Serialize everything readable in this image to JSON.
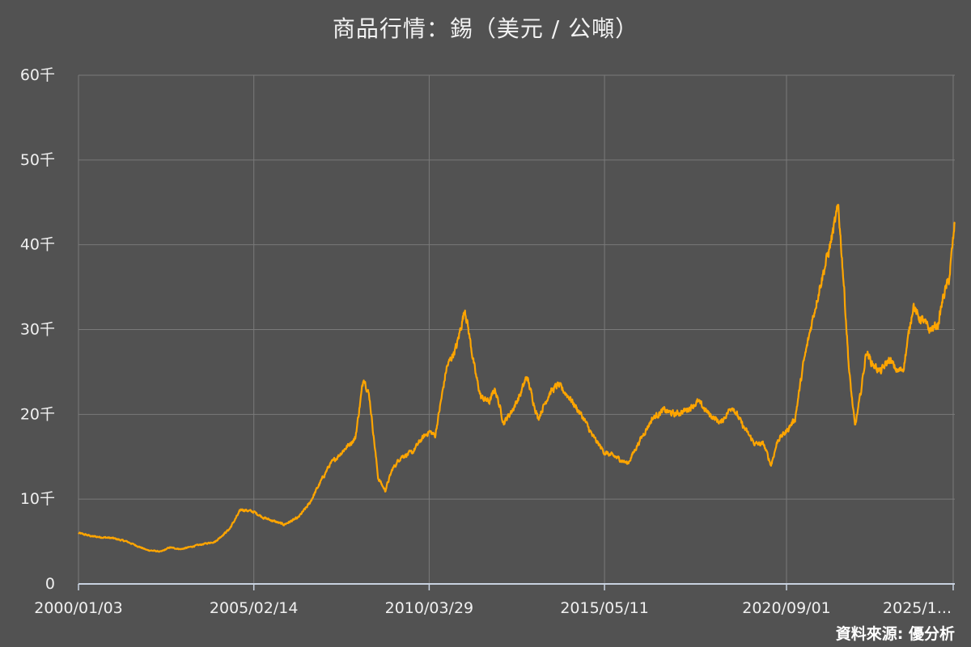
{
  "chart_data": {
    "type": "line",
    "title": "商品行情：錫（美元 / 公噸）",
    "source": "資料來源: 優分析",
    "xlabel": "",
    "ylabel": "",
    "y_ticks": [
      {
        "value": 0,
        "label": "0"
      },
      {
        "value": 10000,
        "label": "10千"
      },
      {
        "value": 20000,
        "label": "20千"
      },
      {
        "value": 30000,
        "label": "30千"
      },
      {
        "value": 40000,
        "label": "40千"
      },
      {
        "value": 50000,
        "label": "50千"
      },
      {
        "value": 60000,
        "label": "60千"
      }
    ],
    "x_ticks": [
      "2000/01/03",
      "2005/02/14",
      "2010/03/29",
      "2015/05/11",
      "2020/09/01",
      "2025/1..."
    ],
    "ylim": [
      0,
      60000
    ],
    "xlim": [
      "2000/01/03",
      "2025/07/31"
    ],
    "grid": true,
    "colors": {
      "line": "#FFA500",
      "grid": "#7a7a7a",
      "axis": "#c8d2e0",
      "background": "#525252"
    },
    "series": [
      {
        "x": [
          "2000/01/03",
          "2000/06/01",
          "2001/01/01",
          "2001/06/01",
          "2002/01/01",
          "2002/06/01",
          "2002/09/01",
          "2003/01/01",
          "2003/06/01",
          "2004/01/01",
          "2004/06/01",
          "2004/10/01",
          "2005/02/14",
          "2005/06/01",
          "2006/01/01",
          "2006/06/01",
          "2006/10/01",
          "2007/01/01",
          "2007/05/01",
          "2007/10/01",
          "2008/02/01",
          "2008/05/01",
          "2008/07/01",
          "2008/10/01",
          "2008/12/15",
          "2009/03/01",
          "2009/06/01",
          "2009/10/01",
          "2010/01/01",
          "2010/03/29",
          "2010/06/01",
          "2010/10/01",
          "2011/01/15",
          "2011/04/15",
          "2011/08/01",
          "2011/10/01",
          "2012/01/01",
          "2012/03/01",
          "2012/06/01",
          "2012/09/01",
          "2012/12/01",
          "2013/02/01",
          "2013/06/01",
          "2013/10/01",
          "2014/01/01",
          "2014/05/01",
          "2014/10/01",
          "2015/01/01",
          "2015/05/11",
          "2015/09/01",
          "2016/01/15",
          "2016/05/01",
          "2016/10/01",
          "2017/02/01",
          "2017/06/01",
          "2017/10/01",
          "2018/02/01",
          "2018/06/01",
          "2018/10/01",
          "2019/02/01",
          "2019/06/01",
          "2019/10/01",
          "2020/01/01",
          "2020/03/20",
          "2020/06/01",
          "2020/09/01",
          "2020/12/01",
          "2021/03/01",
          "2021/06/01",
          "2021/09/01",
          "2021/12/01",
          "2022/03/08",
          "2022/05/01",
          "2022/07/01",
          "2022/09/01",
          "2022/10/25",
          "2023/01/01",
          "2023/03/01",
          "2023/06/01",
          "2023/09/01",
          "2023/12/01",
          "2024/02/01",
          "2024/05/15",
          "2024/07/01",
          "2024/09/01",
          "2024/11/01",
          "2025/02/01",
          "2025/04/01",
          "2025/06/01",
          "2025/07/31"
        ],
        "y": [
          6000,
          5600,
          5400,
          5000,
          4000,
          3800,
          4300,
          4100,
          4500,
          5000,
          6500,
          8800,
          8500,
          7800,
          7000,
          7800,
          9500,
          11500,
          14000,
          15800,
          17200,
          24500,
          22000,
          12500,
          11000,
          13500,
          15000,
          15500,
          17000,
          18000,
          17500,
          25500,
          28000,
          32500,
          25000,
          22000,
          21500,
          23000,
          19000,
          20500,
          22500,
          24500,
          19500,
          22500,
          23500,
          22000,
          19500,
          17500,
          15500,
          15000,
          14200,
          16500,
          19500,
          20500,
          20000,
          20500,
          21500,
          20000,
          19000,
          21000,
          18500,
          16500,
          16500,
          14000,
          17000,
          18000,
          19500,
          26000,
          31000,
          35500,
          39500,
          44500,
          36000,
          25000,
          18500,
          22000,
          27500,
          26000,
          25000,
          26500,
          25000,
          25500,
          33000,
          31500,
          31000,
          30000,
          30500,
          34000,
          36000,
          42500
        ]
      }
    ]
  }
}
